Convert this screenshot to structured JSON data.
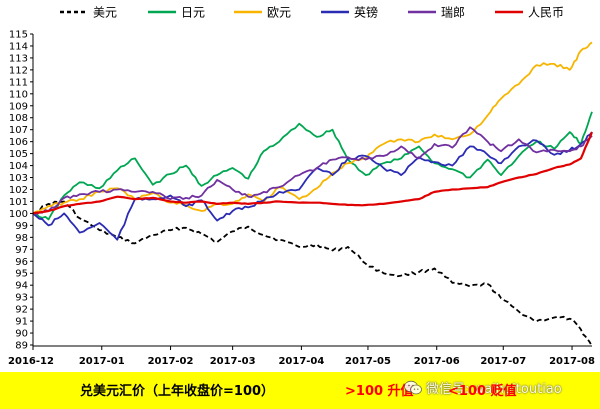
{
  "chart_data": {
    "type": "line",
    "x_ticks": [
      "2016-12",
      "2017-01",
      "2017-02",
      "2017-03",
      "2017-04",
      "2017-05",
      "2017-06",
      "2017-07",
      "2017-08"
    ],
    "x_range": [
      "2016-12-01",
      "2017-08-10"
    ],
    "y_ticks": [
      89,
      90,
      91,
      92,
      93,
      94,
      95,
      96,
      97,
      98,
      99,
      100,
      101,
      102,
      103,
      104,
      105,
      106,
      107,
      108,
      109,
      110,
      111,
      112,
      113,
      114,
      115
    ],
    "ylim": [
      89,
      115
    ],
    "grid": false,
    "legend_position": "top",
    "series": [
      {
        "name": "美元",
        "color": "#000000",
        "dashed": true,
        "points": [
          [
            "2016-12-01",
            100.0
          ],
          [
            "2016-12-08",
            100.8
          ],
          [
            "2016-12-15",
            101.0
          ],
          [
            "2016-12-22",
            99.6
          ],
          [
            "2016-12-31",
            98.6
          ],
          [
            "2017-01-08",
            98.0
          ],
          [
            "2017-01-16",
            97.5
          ],
          [
            "2017-01-24",
            98.2
          ],
          [
            "2017-02-01",
            98.6
          ],
          [
            "2017-02-08",
            98.8
          ],
          [
            "2017-02-15",
            98.3
          ],
          [
            "2017-02-22",
            97.6
          ],
          [
            "2017-03-01",
            98.5
          ],
          [
            "2017-03-08",
            98.9
          ],
          [
            "2017-03-15",
            98.2
          ],
          [
            "2017-03-22",
            97.8
          ],
          [
            "2017-03-31",
            97.2
          ],
          [
            "2017-04-08",
            97.4
          ],
          [
            "2017-04-15",
            96.9
          ],
          [
            "2017-04-22",
            97.2
          ],
          [
            "2017-04-30",
            95.8
          ],
          [
            "2017-05-08",
            95.0
          ],
          [
            "2017-05-16",
            94.8
          ],
          [
            "2017-05-24",
            95.1
          ],
          [
            "2017-05-31",
            95.4
          ],
          [
            "2017-06-08",
            94.2
          ],
          [
            "2017-06-16",
            93.9
          ],
          [
            "2017-06-24",
            94.1
          ],
          [
            "2017-06-30",
            92.9
          ],
          [
            "2017-07-08",
            91.8
          ],
          [
            "2017-07-16",
            91.0
          ],
          [
            "2017-07-24",
            91.3
          ],
          [
            "2017-07-31",
            91.2
          ],
          [
            "2017-08-05",
            90.3
          ],
          [
            "2017-08-10",
            88.9
          ]
        ]
      },
      {
        "name": "日元",
        "color": "#00a651",
        "dashed": false,
        "points": [
          [
            "2016-12-01",
            100.0
          ],
          [
            "2016-12-08",
            99.5
          ],
          [
            "2016-12-15",
            101.5
          ],
          [
            "2016-12-22",
            102.6
          ],
          [
            "2016-12-31",
            102.1
          ],
          [
            "2017-01-08",
            103.6
          ],
          [
            "2017-01-16",
            104.6
          ],
          [
            "2017-01-24",
            102.4
          ],
          [
            "2017-02-01",
            103.3
          ],
          [
            "2017-02-08",
            104.0
          ],
          [
            "2017-02-15",
            102.3
          ],
          [
            "2017-02-22",
            103.2
          ],
          [
            "2017-03-01",
            103.8
          ],
          [
            "2017-03-08",
            102.9
          ],
          [
            "2017-03-15",
            105.2
          ],
          [
            "2017-03-22",
            106.0
          ],
          [
            "2017-03-31",
            107.5
          ],
          [
            "2017-04-08",
            106.4
          ],
          [
            "2017-04-15",
            107.0
          ],
          [
            "2017-04-22",
            104.5
          ],
          [
            "2017-04-30",
            103.2
          ],
          [
            "2017-05-08",
            104.2
          ],
          [
            "2017-05-16",
            104.6
          ],
          [
            "2017-05-24",
            105.6
          ],
          [
            "2017-05-31",
            104.2
          ],
          [
            "2017-06-08",
            103.7
          ],
          [
            "2017-06-16",
            103.0
          ],
          [
            "2017-06-24",
            104.5
          ],
          [
            "2017-06-30",
            103.2
          ],
          [
            "2017-07-08",
            104.8
          ],
          [
            "2017-07-16",
            106.0
          ],
          [
            "2017-07-24",
            105.4
          ],
          [
            "2017-07-31",
            106.8
          ],
          [
            "2017-08-05",
            105.8
          ],
          [
            "2017-08-10",
            108.5
          ]
        ]
      },
      {
        "name": "欧元",
        "color": "#f7b500",
        "dashed": false,
        "points": [
          [
            "2016-12-01",
            100.0
          ],
          [
            "2016-12-08",
            100.6
          ],
          [
            "2016-12-15",
            100.9
          ],
          [
            "2016-12-22",
            101.2
          ],
          [
            "2016-12-31",
            101.8
          ],
          [
            "2017-01-08",
            102.1
          ],
          [
            "2017-01-16",
            101.2
          ],
          [
            "2017-01-24",
            101.7
          ],
          [
            "2017-02-01",
            100.9
          ],
          [
            "2017-02-08",
            100.7
          ],
          [
            "2017-02-15",
            100.2
          ],
          [
            "2017-02-22",
            100.8
          ],
          [
            "2017-03-01",
            100.8
          ],
          [
            "2017-03-08",
            101.6
          ],
          [
            "2017-03-15",
            101.0
          ],
          [
            "2017-03-22",
            102.2
          ],
          [
            "2017-03-31",
            101.2
          ],
          [
            "2017-04-08",
            102.1
          ],
          [
            "2017-04-15",
            103.4
          ],
          [
            "2017-04-22",
            104.2
          ],
          [
            "2017-04-30",
            104.6
          ],
          [
            "2017-05-08",
            105.8
          ],
          [
            "2017-05-16",
            106.2
          ],
          [
            "2017-05-24",
            106.0
          ],
          [
            "2017-05-31",
            106.6
          ],
          [
            "2017-06-08",
            106.2
          ],
          [
            "2017-06-16",
            106.6
          ],
          [
            "2017-06-24",
            108.2
          ],
          [
            "2017-06-30",
            109.6
          ],
          [
            "2017-07-08",
            110.8
          ],
          [
            "2017-07-16",
            112.4
          ],
          [
            "2017-07-24",
            112.5
          ],
          [
            "2017-07-31",
            112.0
          ],
          [
            "2017-08-05",
            113.6
          ],
          [
            "2017-08-10",
            114.3
          ]
        ]
      },
      {
        "name": "英镑",
        "color": "#2b2bb4",
        "dashed": false,
        "points": [
          [
            "2016-12-01",
            100.0
          ],
          [
            "2016-12-08",
            99.0
          ],
          [
            "2016-12-15",
            100.0
          ],
          [
            "2016-12-22",
            98.4
          ],
          [
            "2016-12-31",
            99.2
          ],
          [
            "2017-01-08",
            97.8
          ],
          [
            "2017-01-16",
            101.2
          ],
          [
            "2017-01-24",
            101.2
          ],
          [
            "2017-02-01",
            101.5
          ],
          [
            "2017-02-08",
            100.6
          ],
          [
            "2017-02-15",
            101.1
          ],
          [
            "2017-02-22",
            99.4
          ],
          [
            "2017-03-01",
            100.2
          ],
          [
            "2017-03-08",
            100.5
          ],
          [
            "2017-03-15",
            101.1
          ],
          [
            "2017-03-22",
            101.8
          ],
          [
            "2017-03-31",
            102.0
          ],
          [
            "2017-04-08",
            103.8
          ],
          [
            "2017-04-15",
            103.2
          ],
          [
            "2017-04-22",
            104.6
          ],
          [
            "2017-04-30",
            104.8
          ],
          [
            "2017-05-08",
            103.8
          ],
          [
            "2017-05-16",
            103.2
          ],
          [
            "2017-05-24",
            104.7
          ],
          [
            "2017-05-31",
            104.3
          ],
          [
            "2017-06-08",
            104.0
          ],
          [
            "2017-06-16",
            105.6
          ],
          [
            "2017-06-24",
            104.9
          ],
          [
            "2017-06-30",
            104.2
          ],
          [
            "2017-07-08",
            105.6
          ],
          [
            "2017-07-16",
            106.1
          ],
          [
            "2017-07-24",
            104.9
          ],
          [
            "2017-07-31",
            105.3
          ],
          [
            "2017-08-05",
            105.8
          ],
          [
            "2017-08-10",
            106.8
          ]
        ]
      },
      {
        "name": "瑞郎",
        "color": "#7030a0",
        "dashed": false,
        "points": [
          [
            "2016-12-01",
            100.0
          ],
          [
            "2016-12-08",
            100.2
          ],
          [
            "2016-12-15",
            101.3
          ],
          [
            "2016-12-22",
            101.6
          ],
          [
            "2016-12-31",
            101.8
          ],
          [
            "2017-01-08",
            102.0
          ],
          [
            "2017-01-16",
            101.8
          ],
          [
            "2017-01-24",
            101.8
          ],
          [
            "2017-02-01",
            101.2
          ],
          [
            "2017-02-08",
            101.3
          ],
          [
            "2017-02-15",
            101.5
          ],
          [
            "2017-02-22",
            102.8
          ],
          [
            "2017-03-01",
            102.0
          ],
          [
            "2017-03-08",
            101.4
          ],
          [
            "2017-03-15",
            101.8
          ],
          [
            "2017-03-22",
            102.2
          ],
          [
            "2017-03-31",
            103.2
          ],
          [
            "2017-04-08",
            103.8
          ],
          [
            "2017-04-15",
            104.5
          ],
          [
            "2017-04-22",
            104.7
          ],
          [
            "2017-04-30",
            104.5
          ],
          [
            "2017-05-08",
            104.8
          ],
          [
            "2017-05-16",
            105.6
          ],
          [
            "2017-05-24",
            104.6
          ],
          [
            "2017-05-31",
            105.8
          ],
          [
            "2017-06-08",
            105.5
          ],
          [
            "2017-06-16",
            107.2
          ],
          [
            "2017-06-24",
            106.0
          ],
          [
            "2017-06-30",
            105.2
          ],
          [
            "2017-07-08",
            106.2
          ],
          [
            "2017-07-16",
            105.1
          ],
          [
            "2017-07-24",
            105.3
          ],
          [
            "2017-07-31",
            105.2
          ],
          [
            "2017-08-05",
            105.6
          ],
          [
            "2017-08-10",
            106.5
          ]
        ]
      },
      {
        "name": "人民币",
        "color": "#e00000",
        "dashed": false,
        "points": [
          [
            "2016-12-01",
            100.0
          ],
          [
            "2016-12-08",
            100.2
          ],
          [
            "2016-12-15",
            100.6
          ],
          [
            "2016-12-22",
            100.8
          ],
          [
            "2016-12-31",
            101.0
          ],
          [
            "2017-01-08",
            101.4
          ],
          [
            "2017-01-16",
            101.2
          ],
          [
            "2017-01-24",
            101.3
          ],
          [
            "2017-02-01",
            101.0
          ],
          [
            "2017-02-08",
            100.9
          ],
          [
            "2017-02-15",
            101.0
          ],
          [
            "2017-02-22",
            100.8
          ],
          [
            "2017-03-01",
            100.9
          ],
          [
            "2017-03-08",
            100.8
          ],
          [
            "2017-03-15",
            100.9
          ],
          [
            "2017-03-22",
            101.0
          ],
          [
            "2017-03-31",
            100.9
          ],
          [
            "2017-04-08",
            100.9
          ],
          [
            "2017-04-15",
            100.8
          ],
          [
            "2017-04-22",
            100.7
          ],
          [
            "2017-04-30",
            100.7
          ],
          [
            "2017-05-08",
            100.8
          ],
          [
            "2017-05-16",
            101.0
          ],
          [
            "2017-05-24",
            101.2
          ],
          [
            "2017-05-31",
            101.8
          ],
          [
            "2017-06-08",
            102.0
          ],
          [
            "2017-06-16",
            102.1
          ],
          [
            "2017-06-24",
            102.2
          ],
          [
            "2017-06-30",
            102.6
          ],
          [
            "2017-07-08",
            103.0
          ],
          [
            "2017-07-16",
            103.3
          ],
          [
            "2017-07-24",
            103.8
          ],
          [
            "2017-07-31",
            104.1
          ],
          [
            "2017-08-05",
            104.6
          ],
          [
            "2017-08-10",
            106.8
          ]
        ]
      }
    ]
  },
  "footer": {
    "caption": "兑美元汇价（上年收盘价=100）",
    "up_note": ">100 升值",
    "down_note": "<100 贬值",
    "band_color": "#ffff00",
    "note_color": "#ff0000"
  },
  "watermark": {
    "icon": "wechat-icon",
    "text": "微信号: waihuitoutiao"
  }
}
